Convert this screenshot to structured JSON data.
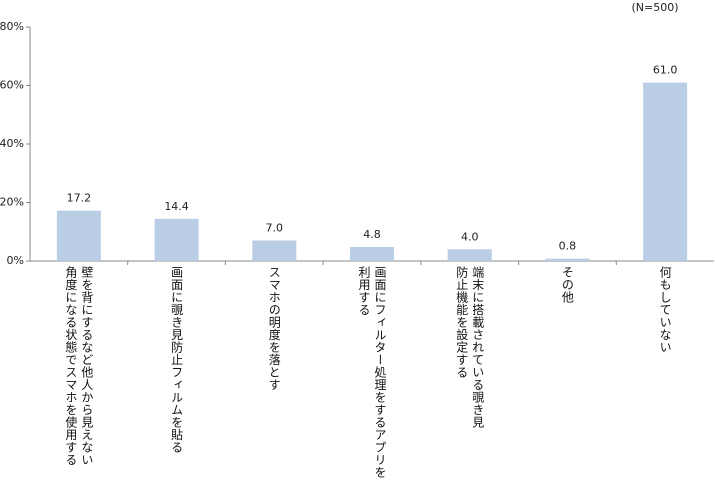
{
  "chart_data": {
    "type": "bar",
    "annotation": "(N=500)",
    "categories": [
      "壁を背にするなど他人から見えない\n角度になる状態でスマホを使用する",
      "画面に覗き見防止フィルムを貼る",
      "スマホの明度を落とす",
      "画面にフィルター処理をするアプリを\n利用する",
      "端末に搭載されている覗き見\n防止機能を設定する",
      "その他",
      "何もしていない"
    ],
    "values": [
      17.2,
      14.4,
      7.0,
      4.8,
      4.0,
      0.8,
      61.0
    ],
    "value_labels": [
      "17.2",
      "14.4",
      "7.0",
      "4.8",
      "4.0",
      "0.8",
      "61.0"
    ],
    "color": "#b9cde5",
    "ylim": [
      0,
      80
    ],
    "yticks": [
      {
        "value": 0,
        "label": "0%"
      },
      {
        "value": 20,
        "label": "20%"
      },
      {
        "value": 40,
        "label": "40%"
      },
      {
        "value": 60,
        "label": "60%"
      },
      {
        "value": 80,
        "label": "80%"
      }
    ]
  }
}
